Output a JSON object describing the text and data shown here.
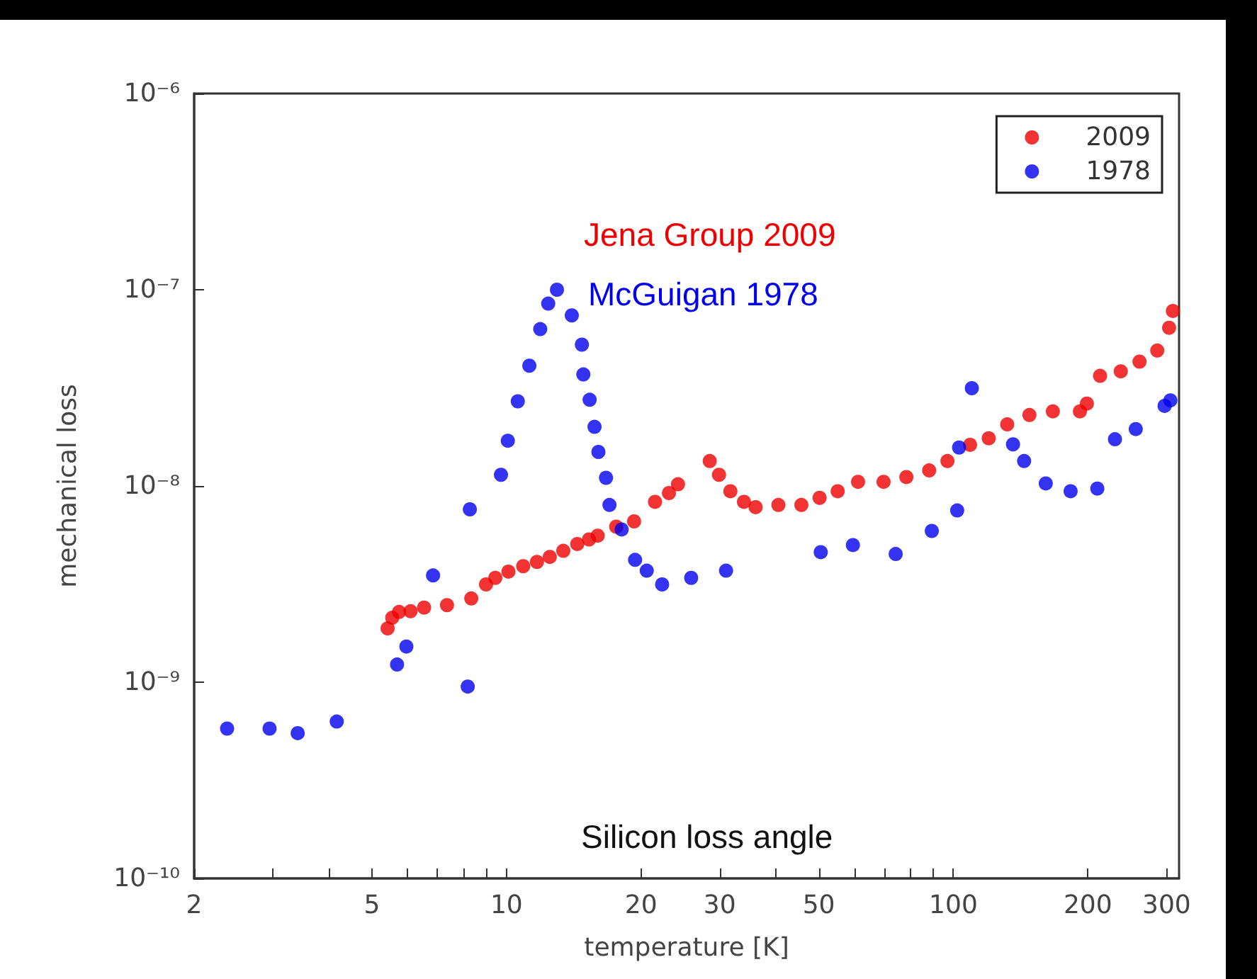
{
  "chart_data": {
    "type": "scatter",
    "xlabel": "temperature [K]",
    "ylabel": "mechanical loss",
    "log": "xy",
    "xlim": [
      2,
      320
    ],
    "ylim": [
      1e-10,
      1e-06
    ],
    "xticks": [
      2,
      {
        "value": 3,
        "label": null
      },
      {
        "value": 4,
        "label": null
      },
      5,
      {
        "value": 6,
        "label": null
      },
      {
        "value": 7,
        "label": null
      },
      {
        "value": 8,
        "label": null
      },
      {
        "value": 9,
        "label": null
      },
      10,
      20,
      30,
      {
        "value": 40,
        "label": null
      },
      50,
      {
        "value": 60,
        "label": null
      },
      {
        "value": 70,
        "label": null
      },
      {
        "value": 80,
        "label": null
      },
      {
        "value": 90,
        "label": null
      },
      100,
      200,
      300
    ],
    "yticks": [
      {
        "value": 1e-10,
        "label": "10⁻¹⁰"
      },
      {
        "value": 1e-09,
        "label": "10⁻⁹"
      },
      {
        "value": 1e-08,
        "label": "10⁻⁸"
      },
      {
        "value": 1e-07,
        "label": "10⁻⁷"
      },
      {
        "value": 1e-06,
        "label": "10⁻⁶"
      }
    ],
    "grid": false,
    "legend": "top right",
    "marker": "circle",
    "annotations": [
      "Jena Group 2009",
      "McGuigan 1978",
      "Silicon loss angle"
    ],
    "series": [
      {
        "name": "2009",
        "color": "#ee0000",
        "x": [
          5.42,
          5.55,
          5.75,
          6.1,
          6.54,
          7.36,
          8.34,
          9.0,
          9.44,
          10.1,
          10.9,
          11.7,
          12.5,
          13.4,
          14.4,
          15.3,
          16.0,
          17.6,
          19.3,
          21.5,
          23.1,
          24.2,
          28.5,
          29.9,
          31.7,
          34.0,
          36.1,
          40.6,
          45.7,
          50.2,
          55.1,
          61.2,
          69.8,
          78.5,
          88.3,
          97.0,
          109,
          120,
          132,
          148,
          167,
          192,
          199,
          213,
          237,
          261,
          286,
          304,
          310
        ],
        "values": [
          1.88e-09,
          2.13e-09,
          2.28e-09,
          2.3e-09,
          2.4e-09,
          2.47e-09,
          2.67e-09,
          3.15e-09,
          3.4e-09,
          3.66e-09,
          3.9e-09,
          4.1e-09,
          4.35e-09,
          4.67e-09,
          5.06e-09,
          5.34e-09,
          5.58e-09,
          6.2e-09,
          6.6e-09,
          8.3e-09,
          9.2e-09,
          1.02e-08,
          1.34e-08,
          1.14e-08,
          9.4e-09,
          8.3e-09,
          7.8e-09,
          8e-09,
          8e-09,
          8.7e-09,
          9.4e-09,
          1.05e-08,
          1.05e-08,
          1.11e-08,
          1.2e-08,
          1.34e-08,
          1.62e-08,
          1.75e-08,
          2.06e-08,
          2.3e-08,
          2.4e-08,
          2.4e-08,
          2.63e-08,
          3.64e-08,
          3.84e-08,
          4.3e-08,
          4.9e-08,
          6.4e-08,
          7.8e-08
        ]
      },
      {
        "name": "1978",
        "color": "#0000ee",
        "x": [
          2.37,
          2.95,
          3.41,
          4.17,
          5.69,
          5.97,
          6.85,
          8.19,
          8.28,
          9.72,
          10.07,
          10.6,
          11.25,
          11.9,
          12.4,
          12.97,
          14.0,
          14.75,
          14.86,
          15.35,
          15.74,
          16.06,
          16.7,
          17.0,
          18.1,
          19.4,
          20.6,
          22.3,
          25.9,
          31.0,
          50.5,
          59.6,
          74.3,
          89.5,
          102,
          103,
          110,
          136,
          144,
          161,
          183,
          210,
          230,
          256,
          297,
          306
        ],
        "values": [
          5.8e-10,
          5.8e-10,
          5.5e-10,
          6.3e-10,
          1.23e-09,
          1.52e-09,
          3.5e-09,
          9.5e-10,
          7.6e-09,
          1.14e-08,
          1.7e-08,
          2.7e-08,
          4.1e-08,
          6.3e-08,
          8.5e-08,
          1e-07,
          7.4e-08,
          5.25e-08,
          3.7e-08,
          2.75e-08,
          2e-08,
          1.49e-08,
          1.1e-08,
          8e-09,
          6e-09,
          4.2e-09,
          3.7e-09,
          3.15e-09,
          3.4e-09,
          3.7e-09,
          4.6e-09,
          5e-09,
          4.5e-09,
          5.9e-09,
          7.5e-09,
          1.57e-08,
          3.15e-08,
          1.63e-08,
          1.34e-08,
          1.03e-08,
          9.4e-09,
          9.7e-09,
          1.73e-08,
          1.95e-08,
          2.56e-08,
          2.73e-08
        ]
      }
    ]
  }
}
